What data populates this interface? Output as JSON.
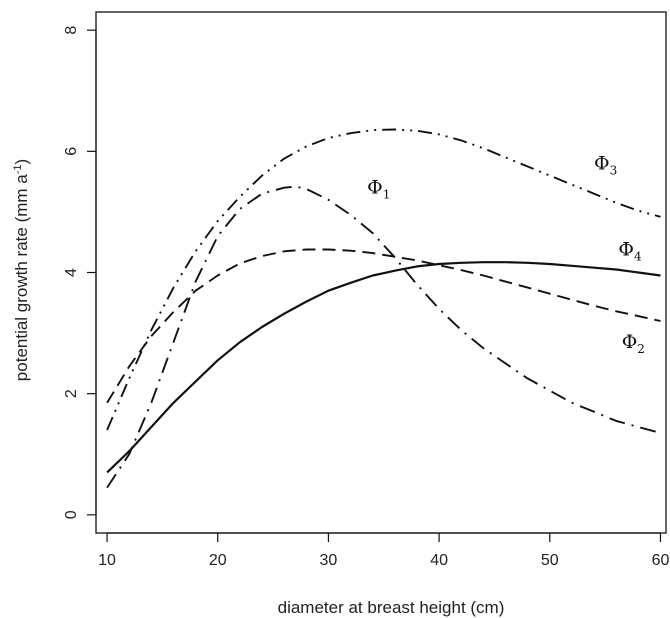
{
  "chart_data": {
    "type": "line",
    "title": "",
    "xlabel": "diameter at breast height (cm)",
    "ylabel": "potential growth rate (mm a",
    "ylabel_sup": "-1",
    "ylabel_close": ")",
    "xlim": [
      9,
      60.5
    ],
    "ylim": [
      -0.3,
      8.3
    ],
    "xticks": [
      10,
      20,
      30,
      40,
      50,
      60
    ],
    "yticks": [
      0,
      2,
      4,
      6,
      8
    ],
    "grid": false,
    "legend": "none",
    "series": [
      {
        "name": "Φ1",
        "label_main": "Φ",
        "label_sub": "1",
        "style": "dashdot-long",
        "label_pos": [
          33.5,
          5.3
        ],
        "x": [
          10,
          12,
          14,
          16,
          18,
          20,
          22,
          24,
          26,
          27,
          28,
          30,
          32,
          34,
          36,
          38,
          40,
          42,
          44,
          46,
          48,
          50,
          52,
          54,
          56,
          58,
          60
        ],
        "y": [
          0.45,
          1.0,
          1.85,
          2.85,
          3.85,
          4.6,
          5.05,
          5.3,
          5.4,
          5.42,
          5.38,
          5.2,
          4.95,
          4.65,
          4.25,
          3.8,
          3.4,
          3.05,
          2.75,
          2.5,
          2.25,
          2.05,
          1.85,
          1.7,
          1.55,
          1.45,
          1.35
        ]
      },
      {
        "name": "Φ2",
        "label_main": "Φ",
        "label_sub": "2",
        "style": "dashed",
        "label_pos": [
          56.5,
          2.75
        ],
        "x": [
          10,
          12,
          14,
          16,
          18,
          20,
          22,
          24,
          26,
          28,
          30,
          32,
          34,
          36,
          38,
          40,
          42,
          44,
          46,
          48,
          50,
          52,
          54,
          56,
          58,
          60
        ],
        "y": [
          1.85,
          2.45,
          2.95,
          3.35,
          3.7,
          3.95,
          4.15,
          4.27,
          4.35,
          4.38,
          4.38,
          4.36,
          4.32,
          4.26,
          4.2,
          4.12,
          4.04,
          3.95,
          3.85,
          3.75,
          3.65,
          3.55,
          3.45,
          3.36,
          3.28,
          3.2
        ]
      },
      {
        "name": "Φ3",
        "label_main": "Φ",
        "label_sub": "3",
        "style": "dashdotdot",
        "label_pos": [
          54,
          5.7
        ],
        "x": [
          10,
          12,
          14,
          16,
          18,
          20,
          22,
          24,
          26,
          28,
          30,
          32,
          34,
          36,
          38,
          40,
          42,
          44,
          46,
          48,
          50,
          52,
          54,
          56,
          58,
          60
        ],
        "y": [
          1.4,
          2.25,
          3.05,
          3.75,
          4.35,
          4.85,
          5.25,
          5.6,
          5.88,
          6.08,
          6.22,
          6.3,
          6.35,
          6.36,
          6.34,
          6.28,
          6.18,
          6.05,
          5.9,
          5.75,
          5.6,
          5.45,
          5.3,
          5.15,
          5.02,
          4.92
        ]
      },
      {
        "name": "Φ4",
        "label_main": "Φ",
        "label_sub": "4",
        "style": "solid",
        "label_pos": [
          56.2,
          4.28
        ],
        "x": [
          10,
          12,
          14,
          16,
          18,
          20,
          22,
          24,
          26,
          28,
          30,
          32,
          34,
          36,
          38,
          40,
          42,
          44,
          46,
          48,
          50,
          52,
          54,
          56,
          58,
          60
        ],
        "y": [
          0.7,
          1.05,
          1.45,
          1.85,
          2.2,
          2.55,
          2.85,
          3.1,
          3.32,
          3.52,
          3.7,
          3.83,
          3.95,
          4.03,
          4.1,
          4.14,
          4.16,
          4.17,
          4.17,
          4.16,
          4.14,
          4.11,
          4.08,
          4.05,
          4.0,
          3.95
        ]
      }
    ]
  }
}
